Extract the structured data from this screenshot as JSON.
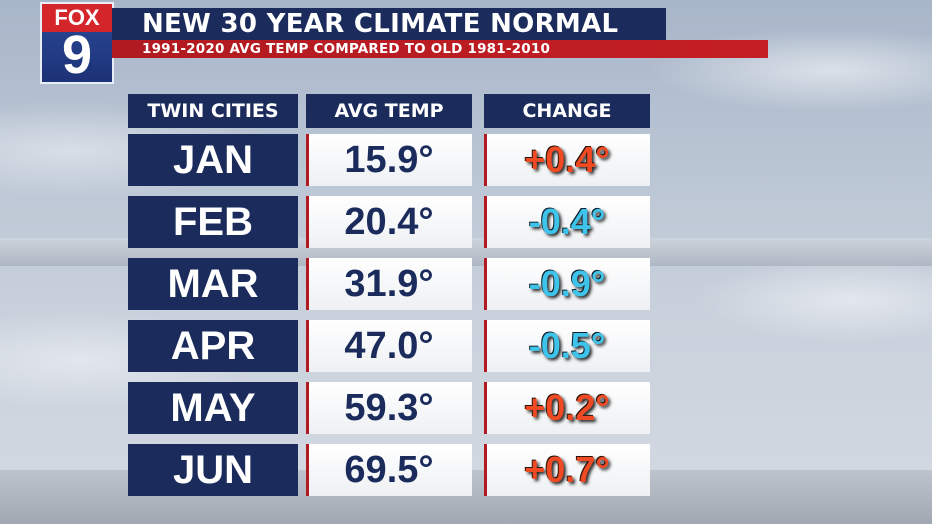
{
  "logo": {
    "brand": "FOX",
    "channel": "9"
  },
  "header": {
    "title": "NEW 30 YEAR CLIMATE NORMAL",
    "subtitle": "1991-2020 AVG TEMP COMPARED TO OLD 1981-2010"
  },
  "table": {
    "columns": [
      "TWIN CITIES",
      "AVG TEMP",
      "CHANGE"
    ],
    "rows": [
      {
        "month": "JAN",
        "avg": "15.9°",
        "change": "+0.4°",
        "direction": "up"
      },
      {
        "month": "FEB",
        "avg": "20.4°",
        "change": "-0.4°",
        "direction": "down"
      },
      {
        "month": "MAR",
        "avg": "31.9°",
        "change": "-0.9°",
        "direction": "down"
      },
      {
        "month": "APR",
        "avg": "47.0°",
        "change": "-0.5°",
        "direction": "down"
      },
      {
        "month": "MAY",
        "avg": "59.3°",
        "change": "+0.2°",
        "direction": "up"
      },
      {
        "month": "JUN",
        "avg": "69.5°",
        "change": "+0.7°",
        "direction": "up"
      }
    ]
  },
  "colors": {
    "navy": "#1b2c5c",
    "red": "#c41f25",
    "warm_change": "#f04a24",
    "cool_change": "#3ec4ea"
  }
}
